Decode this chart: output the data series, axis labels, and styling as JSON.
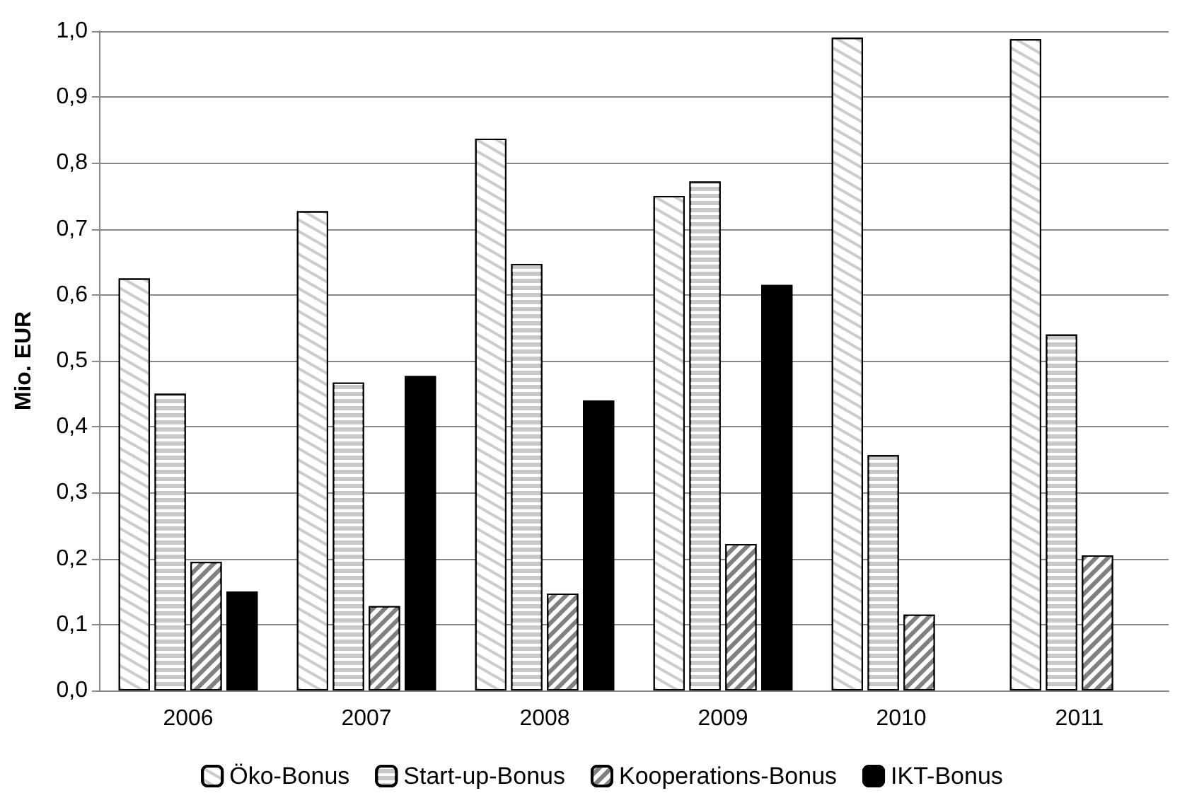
{
  "chart_data": {
    "type": "bar",
    "ylabel": "Mio. EUR",
    "categories": [
      "2006",
      "2007",
      "2008",
      "2009",
      "2010",
      "2011"
    ],
    "series": [
      {
        "name": "Öko-Bonus",
        "color": "#ffffff",
        "values": [
          0.625,
          0.727,
          0.837,
          0.75,
          0.99,
          0.988
        ]
      },
      {
        "name": "Start-up-Bonus",
        "color": "#c8c8c8",
        "values": [
          0.45,
          0.467,
          0.647,
          0.772,
          0.357,
          0.54
        ]
      },
      {
        "name": "Kooperations-Bonus",
        "color": "#808080",
        "values": [
          0.195,
          0.128,
          0.147,
          0.222,
          0.115,
          0.205
        ]
      },
      {
        "name": "IKT-Bonus",
        "color": "#000000",
        "values": [
          0.15,
          0.477,
          0.44,
          0.615,
          null,
          null
        ]
      }
    ],
    "ylim": [
      0,
      1
    ],
    "yticks": [
      {
        "value": 0,
        "label": "0,0"
      },
      {
        "value": 0.1,
        "label": "0,1"
      },
      {
        "value": 0.2,
        "label": "0,2"
      },
      {
        "value": 0.3,
        "label": "0,3"
      },
      {
        "value": 0.4,
        "label": "0,4"
      },
      {
        "value": 0.5,
        "label": "0,5"
      },
      {
        "value": 0.6,
        "label": "0,6"
      },
      {
        "value": 0.7,
        "label": "0,7"
      },
      {
        "value": 0.8,
        "label": "0,8"
      },
      {
        "value": 0.9,
        "label": "0,9"
      },
      {
        "value": 1,
        "label": "1,0"
      }
    ],
    "grid": "y",
    "legend": "bottom"
  }
}
